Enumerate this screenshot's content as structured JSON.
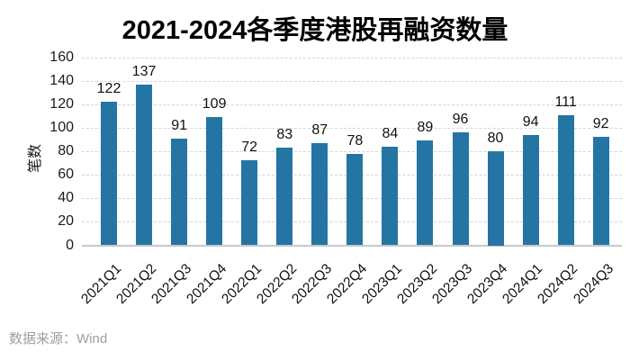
{
  "chart_data": {
    "type": "bar",
    "title": "2021-2024各季度港股再融资数量",
    "categories": [
      "2021Q1",
      "2021Q2",
      "2021Q3",
      "2021Q4",
      "2022Q1",
      "2022Q2",
      "2022Q3",
      "2022Q4",
      "2023Q1",
      "2023Q2",
      "2023Q3",
      "2023Q4",
      "2024Q1",
      "2024Q2",
      "2024Q3"
    ],
    "values": [
      122,
      137,
      91,
      109,
      72,
      83,
      87,
      78,
      84,
      89,
      96,
      80,
      94,
      111,
      92
    ],
    "xlabel": "",
    "ylabel": "笔数",
    "ylim": [
      0,
      160
    ],
    "yticks": [
      0,
      20,
      40,
      60,
      80,
      100,
      120,
      140,
      160
    ],
    "grid": "horizontal-dashed",
    "legend_position": "none",
    "value_labels_shown": true,
    "x_tick_rotation_deg": 45
  },
  "footer": {
    "source": "数据来源：Wind"
  },
  "colors": {
    "background": "#ffffff",
    "bar": "#2475a3",
    "grid": "#d6d6d6",
    "axis": "#c9c9c9",
    "text": "#1a1a1a",
    "value_label_text": "#111111",
    "title_text": "#000000",
    "source_text": "#9e9e9e"
  }
}
